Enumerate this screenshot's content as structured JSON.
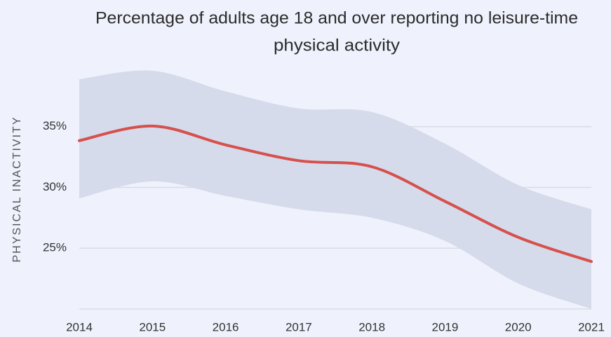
{
  "chart_data": {
    "type": "line",
    "title": [
      "Percentage of adults age 18 and over reporting no leisure-time",
      "physical activity"
    ],
    "ylabel": "PHYSICAL INACTIVITY",
    "x": [
      2014,
      2015,
      2016,
      2017,
      2018,
      2019,
      2020,
      2021
    ],
    "values": [
      33.85,
      35.05,
      33.5,
      32.2,
      31.7,
      28.85,
      25.9,
      23.9
    ],
    "upper": [
      38.9,
      39.6,
      37.9,
      36.5,
      36.2,
      33.6,
      30.2,
      28.2
    ],
    "lower": [
      29.1,
      30.5,
      29.3,
      28.2,
      27.5,
      25.6,
      22.1,
      20.0
    ],
    "color": "#d6504c",
    "band_color": "#d5dbeb",
    "xlim": [
      2014,
      2021
    ],
    "xticks": [
      2014,
      2015,
      2016,
      2017,
      2018,
      2019,
      2020,
      2021
    ],
    "ylim": [
      20,
      40
    ],
    "yticks": [
      {
        "value": 25,
        "label": "25%"
      },
      {
        "value": 30,
        "label": "30%"
      },
      {
        "value": 35,
        "label": "35%"
      }
    ],
    "grid": true
  }
}
